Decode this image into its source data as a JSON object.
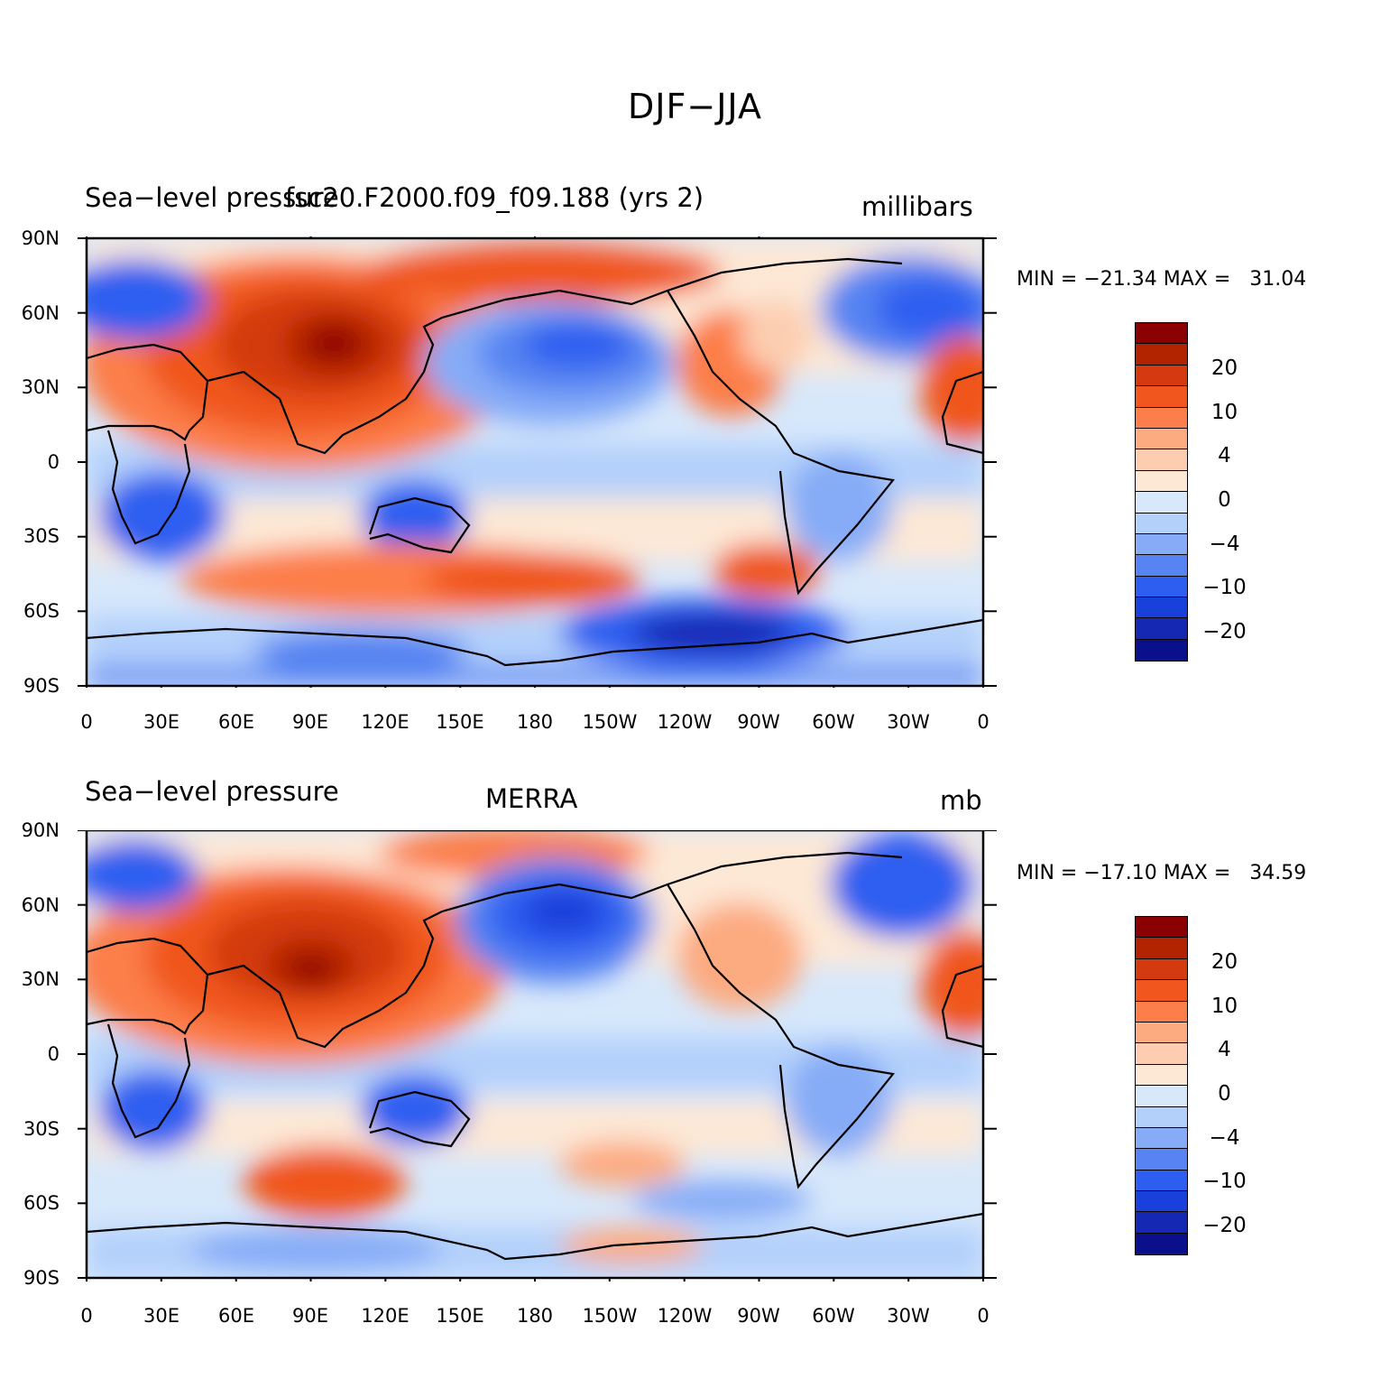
{
  "title": "DJF−JJA",
  "panels": [
    {
      "left_label": "Sea−level pressure",
      "center_label": "fsc20.F2000.f09_f09.188 (yrs 2)",
      "units": "millibars",
      "stats": "MIN = −21.34 MAX =   31.04",
      "min": -21.34,
      "max": 31.04
    },
    {
      "left_label": "Sea−level pressure",
      "center_label": "MERRA",
      "units": "mb",
      "stats": "MIN = −17.10 MAX =   34.59",
      "min": -17.1,
      "max": 34.59
    }
  ],
  "axes": {
    "y_ticks": [
      "90N",
      "60N",
      "30N",
      "0",
      "30S",
      "60S",
      "90S"
    ],
    "x_ticks": [
      "0",
      "30E",
      "60E",
      "90E",
      "120E",
      "150E",
      "180",
      "150W",
      "120W",
      "90W",
      "60W",
      "30W",
      "0"
    ]
  },
  "colorbar": {
    "colors": [
      "#8b0000",
      "#b22400",
      "#d33a0f",
      "#f0561e",
      "#fc7e4a",
      "#fcaa80",
      "#fccdb0",
      "#fde8d6",
      "#d7e8fb",
      "#b3d0fb",
      "#86acf7",
      "#5784f2",
      "#2e5ef0",
      "#1a40dc",
      "#1428b4",
      "#0a0f8c"
    ],
    "labels": [
      "20",
      "10",
      "4",
      "0",
      "−4",
      "−10",
      "−20"
    ]
  }
}
